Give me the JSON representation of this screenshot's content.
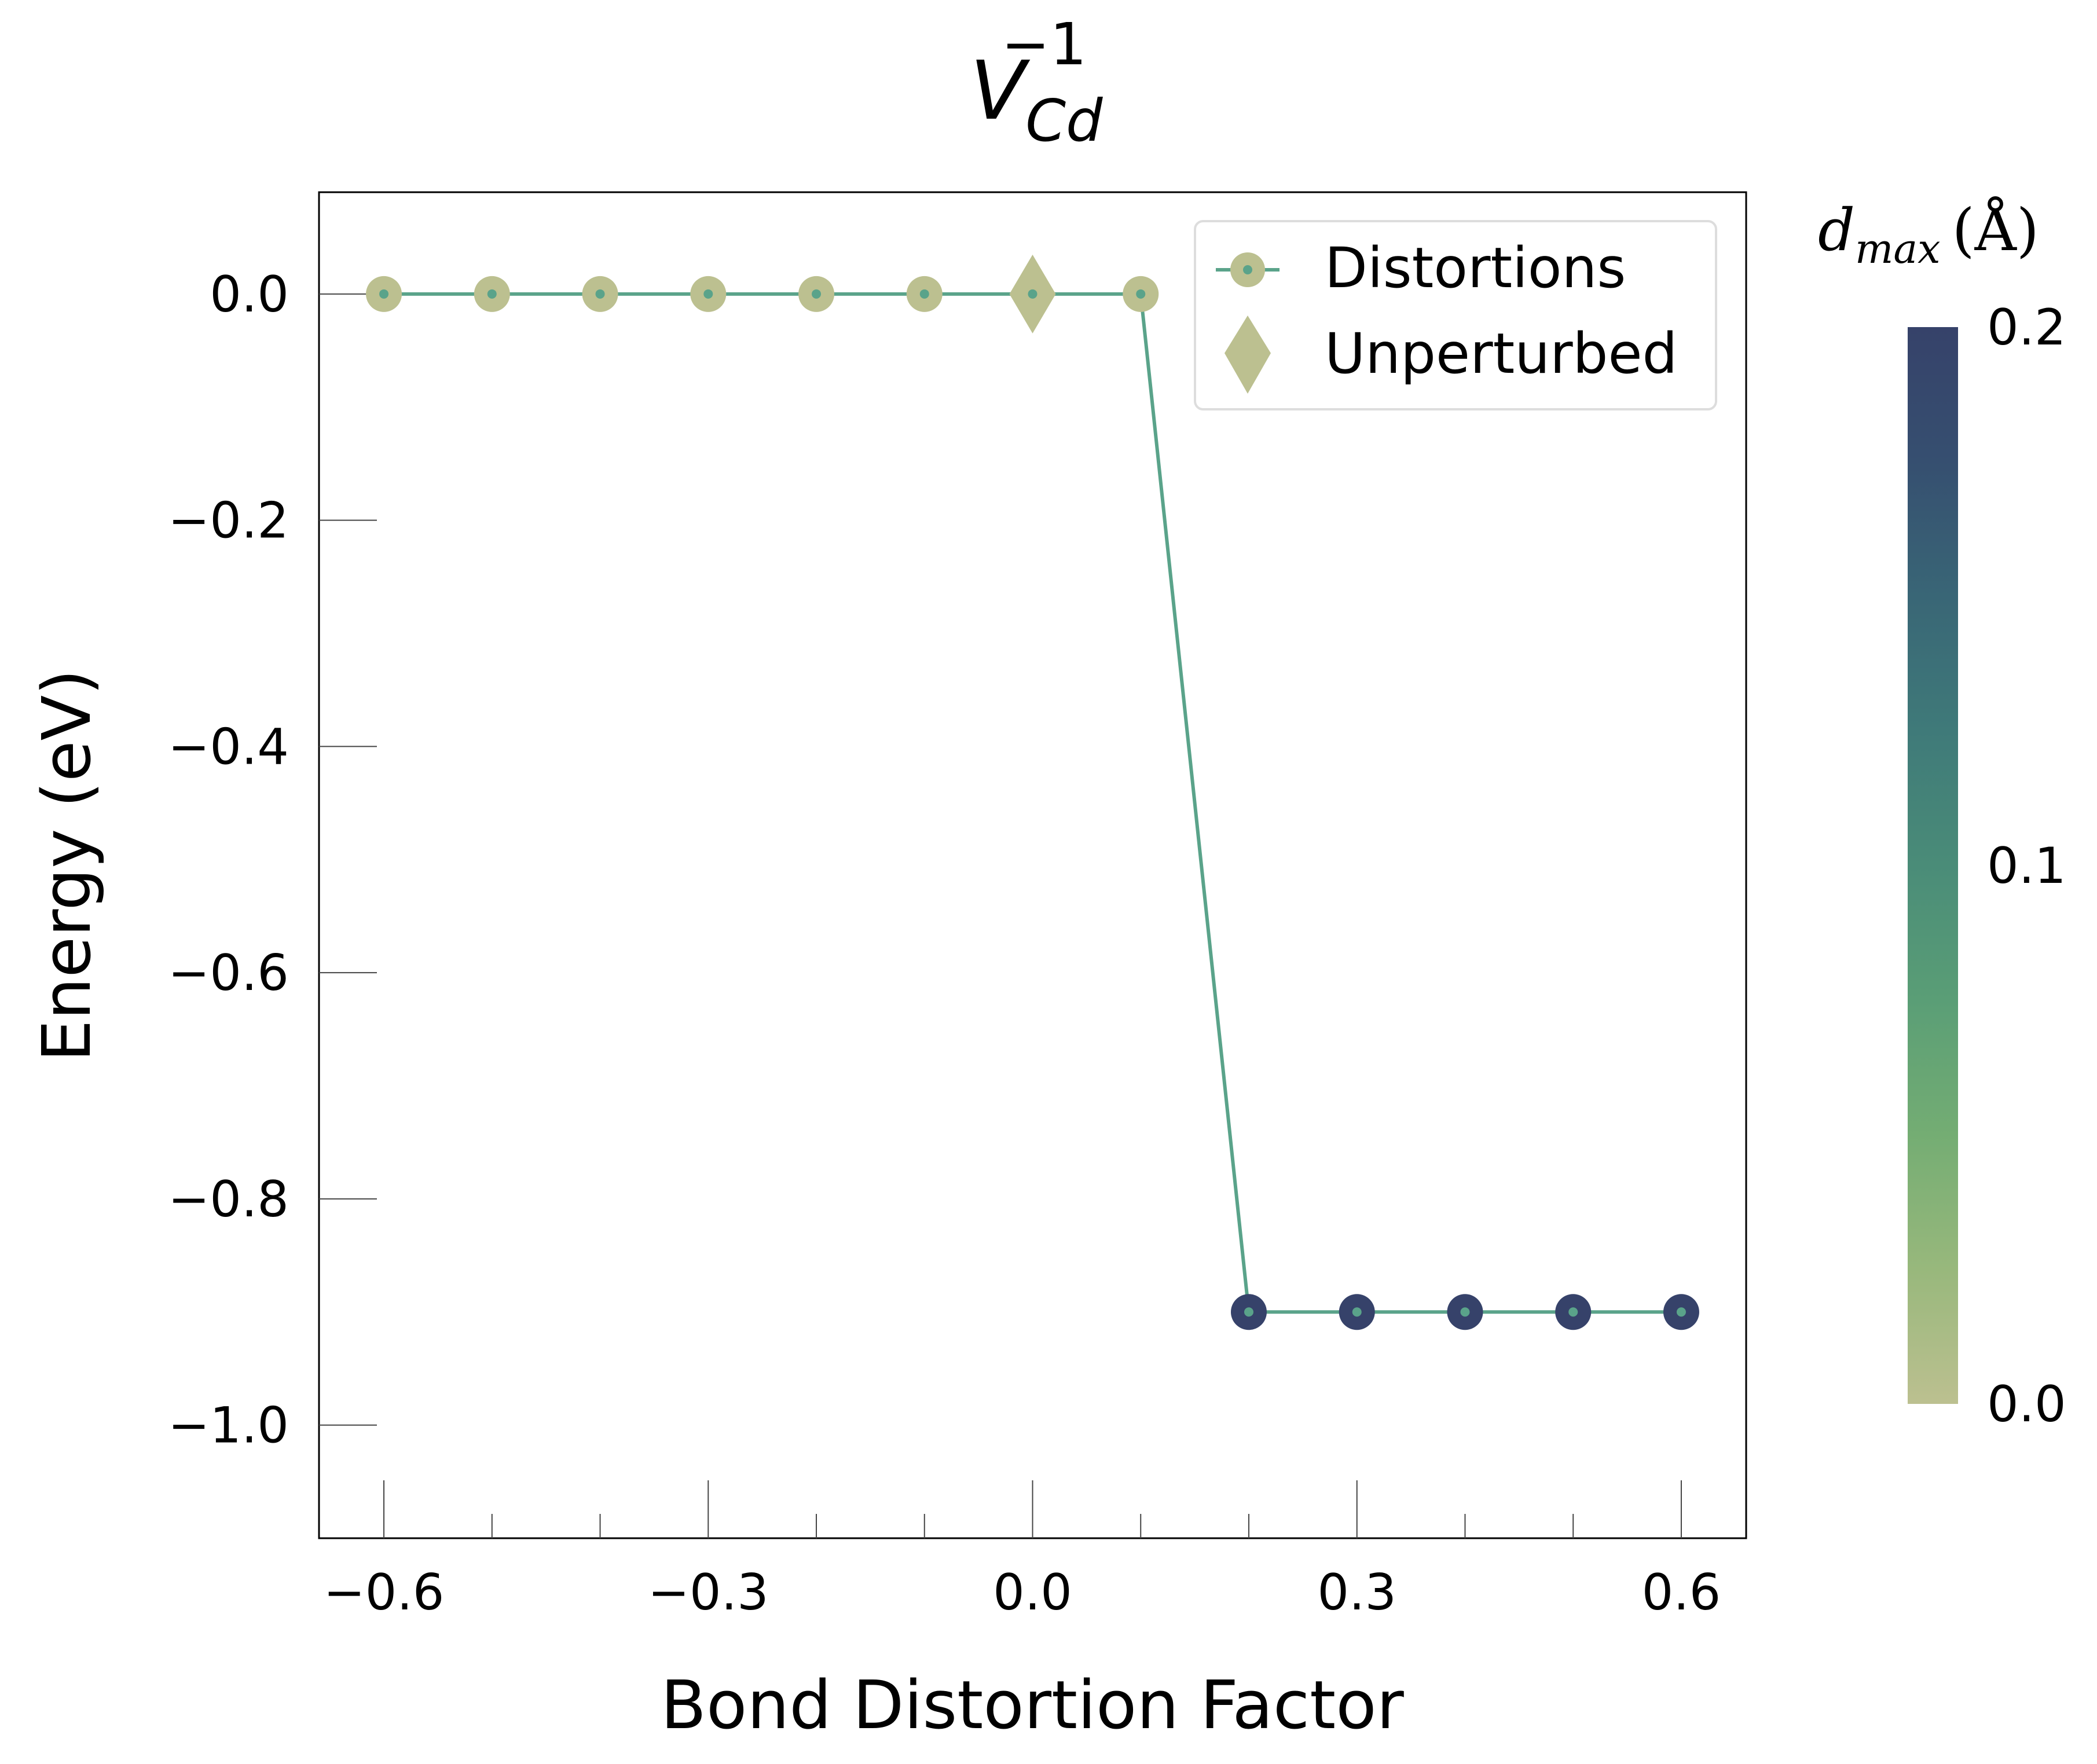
{
  "chart_data": {
    "type": "scatter",
    "title": {
      "base": "V",
      "subscript": "Cd",
      "superscript": "−1"
    },
    "xlabel": "Bond Distortion Factor",
    "ylabel": "Energy (eV)",
    "xlim": [
      -0.66,
      0.66
    ],
    "ylim": [
      -1.1,
      0.09
    ],
    "x_ticks": [
      {
        "value": -0.6,
        "label": "−0.6"
      },
      {
        "value": -0.3,
        "label": "−0.3"
      },
      {
        "value": 0.0,
        "label": "0.0"
      },
      {
        "value": 0.3,
        "label": "0.3"
      },
      {
        "value": 0.6,
        "label": "0.6"
      }
    ],
    "x_minor_ticks": [
      -0.5,
      -0.4,
      -0.2,
      -0.1,
      0.1,
      0.2,
      0.4,
      0.5
    ],
    "y_ticks": [
      {
        "value": 0.0,
        "label": "0.0"
      },
      {
        "value": -0.2,
        "label": "−0.2"
      },
      {
        "value": -0.4,
        "label": "−0.4"
      },
      {
        "value": -0.6,
        "label": "−0.6"
      },
      {
        "value": -0.8,
        "label": "−0.8"
      },
      {
        "value": -1.0,
        "label": "−1.0"
      }
    ],
    "grid": false,
    "legend_position": "top-right",
    "series": [
      {
        "name": "Distortions",
        "marker": "circle",
        "line_color": "#5aa38a",
        "x": [
          -0.6,
          -0.5,
          -0.4,
          -0.3,
          -0.2,
          -0.1,
          0.1,
          0.2,
          0.3,
          0.4,
          0.5,
          0.6
        ],
        "y": [
          0,
          0,
          0,
          0,
          0,
          0,
          0,
          -0.9,
          -0.9,
          -0.9,
          -0.9,
          -0.9
        ],
        "d_max": [
          0,
          0,
          0,
          0,
          0,
          0,
          0,
          0.2,
          0.2,
          0.2,
          0.2,
          0.2
        ]
      },
      {
        "name": "Unperturbed",
        "marker": "diamond",
        "x": [
          0.0
        ],
        "y": [
          0.0
        ],
        "d_max": [
          0
        ]
      }
    ],
    "colorbar": {
      "label_main": "d",
      "label_sub": "max",
      "label_unit": "(Å)",
      "min": 0.0,
      "max": 0.2,
      "ticks": [
        {
          "value": 0.0,
          "label": "0.0"
        },
        {
          "value": 0.1,
          "label": "0.1"
        },
        {
          "value": 0.2,
          "label": "0.2"
        }
      ],
      "colors": [
        "#bcc090",
        "#98b87c",
        "#74ad73",
        "#5a9e76",
        "#4a8c78",
        "#3f7a79",
        "#396676",
        "#364f70",
        "#36426a"
      ]
    }
  }
}
